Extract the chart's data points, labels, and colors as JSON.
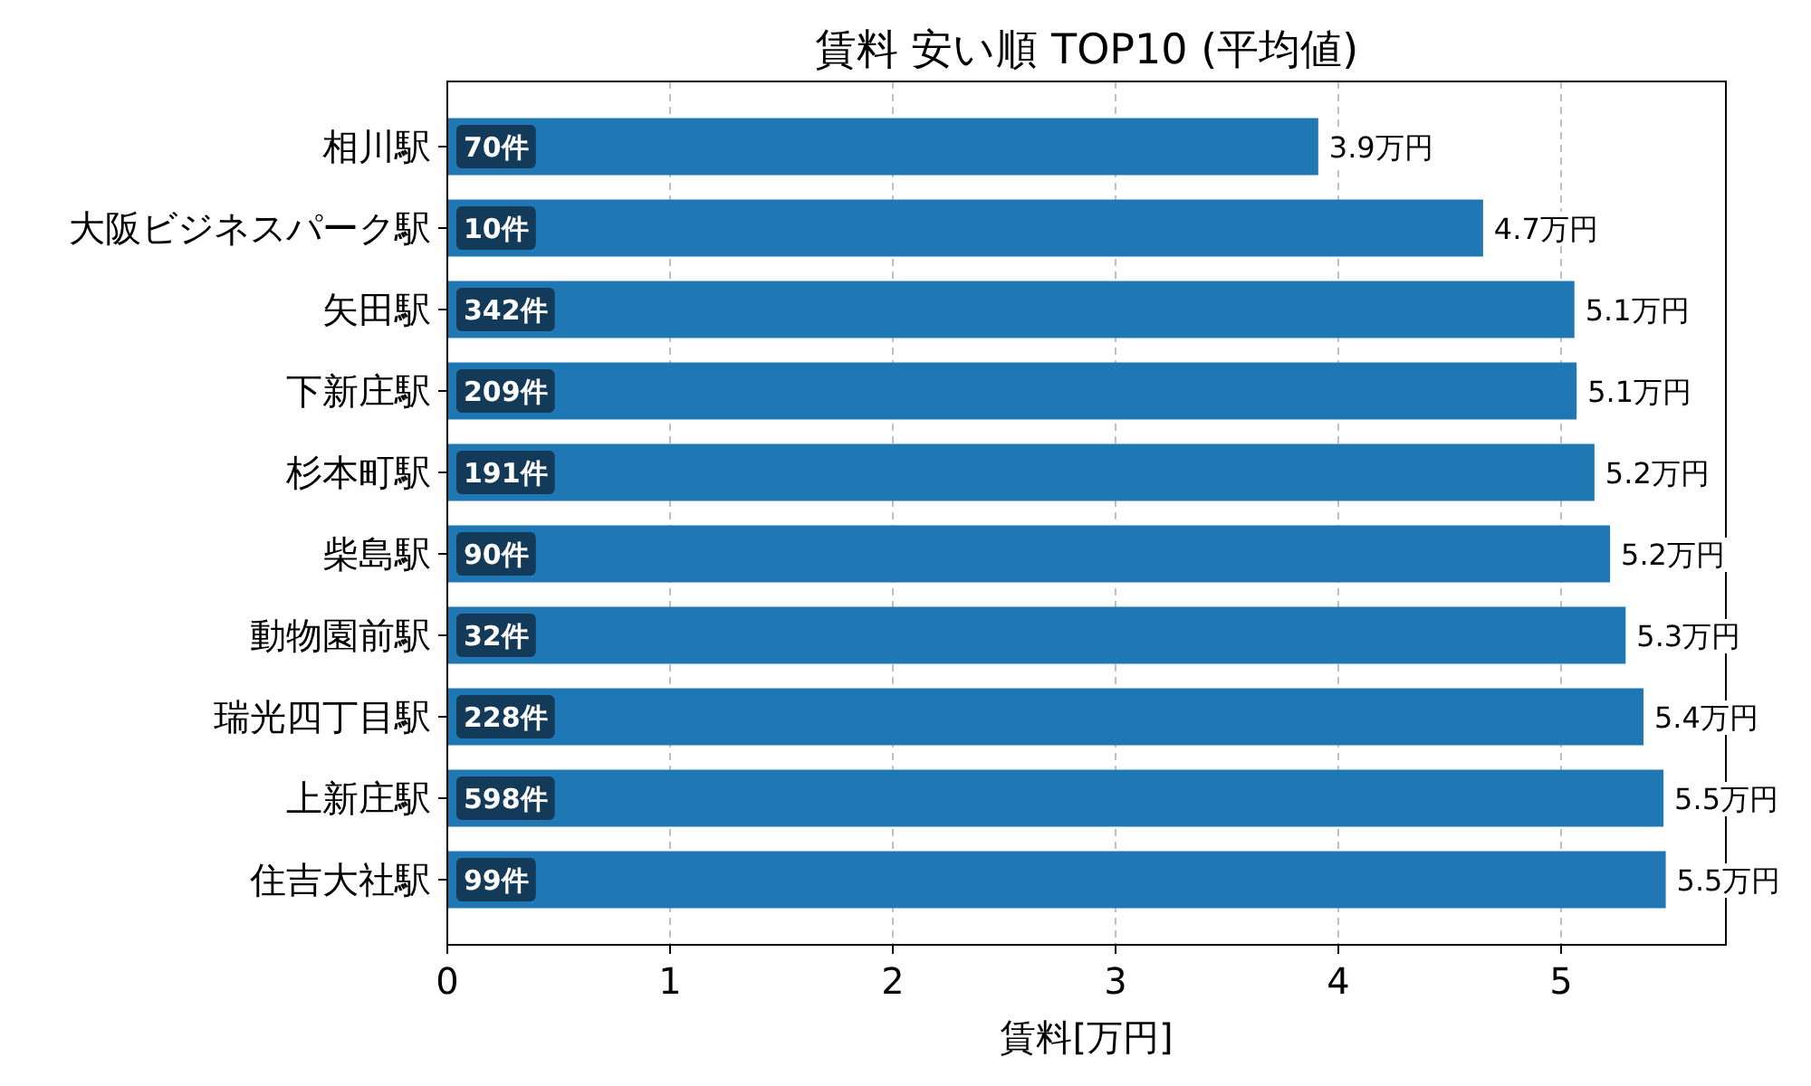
{
  "chart_data": {
    "type": "bar",
    "orientation": "horizontal",
    "title": "賃料 安い順 TOP10 (平均値)",
    "xlabel": "賃料[万円]",
    "categories": [
      "相川駅",
      "大阪ビジネスパーク駅",
      "矢田駅",
      "下新庄駅",
      "杉本町駅",
      "柴島駅",
      "動物園前駅",
      "瑞光四丁目駅",
      "上新庄駅",
      "住吉大社駅"
    ],
    "values": [
      3.91,
      4.65,
      5.06,
      5.07,
      5.15,
      5.22,
      5.29,
      5.37,
      5.46,
      5.47
    ],
    "color": "#1f77b4",
    "value_labels": [
      "3.9万円",
      "4.7万円",
      "5.1万円",
      "5.1万円",
      "5.2万円",
      "5.2万円",
      "5.3万円",
      "5.4万円",
      "5.5万円",
      "5.5万円"
    ],
    "xlim": [
      0,
      5.74
    ],
    "xticks": [
      0,
      1,
      2,
      3,
      4,
      5
    ],
    "grid": "x",
    "annotations": [
      {
        "text": "70件",
        "y": "相川駅"
      },
      {
        "text": "10件",
        "y": "大阪ビジネスパーク駅"
      },
      {
        "text": "342件",
        "y": "矢田駅"
      },
      {
        "text": "209件",
        "y": "下新庄駅"
      },
      {
        "text": "191件",
        "y": "杉本町駅"
      },
      {
        "text": "90件",
        "y": "柴島駅"
      },
      {
        "text": "32件",
        "y": "動物園前駅"
      },
      {
        "text": "228件",
        "y": "瑞光四丁目駅"
      },
      {
        "text": "598件",
        "y": "上新庄駅"
      },
      {
        "text": "99件",
        "y": "住吉大社駅"
      }
    ]
  }
}
